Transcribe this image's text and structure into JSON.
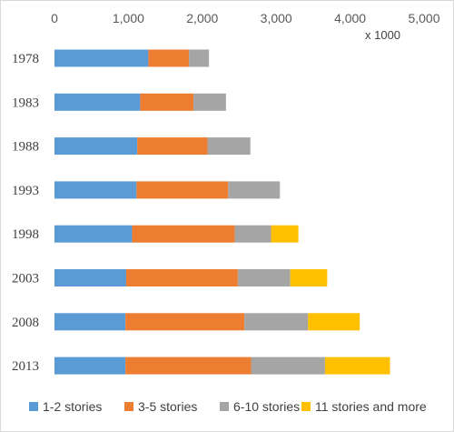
{
  "chart_data": {
    "type": "bar",
    "orientation": "horizontal",
    "stacked": true,
    "categories": [
      "1978",
      "1983",
      "1988",
      "1993",
      "1998",
      "2003",
      "2008",
      "2013"
    ],
    "series": [
      {
        "name": "1-2 stories",
        "color": "#5B9BD5",
        "values": [
          1270,
          1160,
          1120,
          1110,
          1050,
          970,
          960,
          960
        ]
      },
      {
        "name": "3-5 stories",
        "color": "#ED7D31",
        "values": [
          550,
          720,
          950,
          1240,
          1390,
          1510,
          1610,
          1700
        ]
      },
      {
        "name": "6-10 stories",
        "color": "#A5A5A5",
        "values": [
          270,
          440,
          580,
          700,
          490,
          710,
          860,
          1000
        ]
      },
      {
        "name": "11 stories and more",
        "color": "#FFC000",
        "values": [
          0,
          0,
          0,
          0,
          370,
          500,
          700,
          880
        ]
      }
    ],
    "x_ticks": [
      "0",
      "1,000",
      "2,000",
      "3,000",
      "4,000",
      "5,000"
    ],
    "xlim": [
      0,
      5000
    ],
    "x_unit_label": "x 1000",
    "grid": false,
    "legend_position": "bottom"
  }
}
